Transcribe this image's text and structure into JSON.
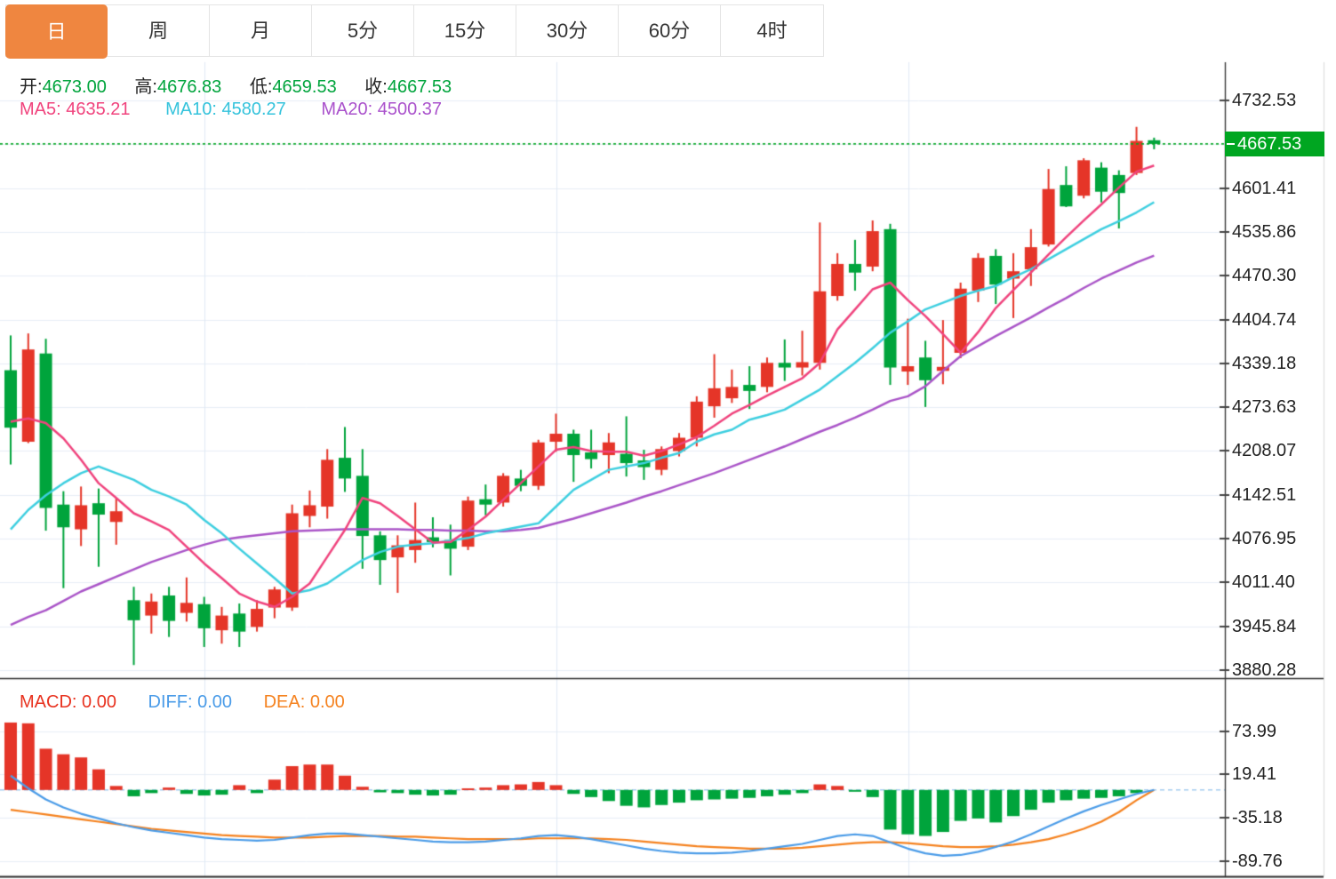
{
  "tabs": {
    "items": [
      {
        "label": "日",
        "active": true
      },
      {
        "label": "周",
        "active": false
      },
      {
        "label": "月",
        "active": false
      },
      {
        "label": "5分",
        "active": false
      },
      {
        "label": "15分",
        "active": false
      },
      {
        "label": "30分",
        "active": false
      },
      {
        "label": "60分",
        "active": false
      },
      {
        "label": "4时",
        "active": false
      }
    ]
  },
  "ohlc_bar": {
    "open_label": "开:",
    "open": "4673.00",
    "high_label": "高:",
    "high": "4676.83",
    "low_label": "低:",
    "low": "4659.53",
    "close_label": "收:",
    "close": "4667.53"
  },
  "ma_bar": {
    "ma5_label": "MA5:",
    "ma5": "4635.21",
    "ma10_label": "MA10:",
    "ma10": "4580.27",
    "ma20_label": "MA20:",
    "ma20": "4500.37"
  },
  "macd_bar": {
    "macd_label": "MACD:",
    "macd": "0.00",
    "diff_label": "DIFF:",
    "diff": "0.00",
    "dea_label": "DEA:",
    "dea": "0.00"
  },
  "colors": {
    "up": "#e53528",
    "down": "#00a43c",
    "ma5": "#f0437d",
    "ma10": "#3ecfe0",
    "ma20": "#aa55c8",
    "diff": "#4b9ce8",
    "dea": "#f5821f",
    "grid": "#e8eef6",
    "vgrid": "#dfe9f4",
    "axis": "#333333",
    "zero_dash": "#a5cdf0",
    "current_line": "#00a621",
    "tag_bg": "#00a621",
    "tab_active_bg": "#ef8640"
  },
  "price_axis": {
    "ticks": [
      4732.53,
      4601.41,
      4535.86,
      4470.3,
      4404.74,
      4339.18,
      4273.63,
      4208.07,
      4142.51,
      4076.95,
      4011.4,
      3945.84,
      3880.28
    ],
    "hidden_tick": 4666.97,
    "current": "4667.53"
  },
  "macd_axis": {
    "ticks": [
      73.99,
      19.41,
      -35.18,
      -89.76
    ]
  },
  "chart_data": {
    "type": "candlestick+macd",
    "title": "Daily K-line with MA5/MA10/MA20 and MACD",
    "legend_position": "top-left overlay",
    "grid": true,
    "y_axis_main": {
      "min": 3880.28,
      "max": 4732.53,
      "tick_step": 65.56
    },
    "y_axis_macd": {
      "min": -89.76,
      "max": 73.99
    },
    "current_price": 4667.53,
    "candles_ohlc": [
      [
        4329,
        4381,
        4188,
        4243
      ],
      [
        4222,
        4384,
        4220,
        4360
      ],
      [
        4354,
        4376,
        4089,
        4123
      ],
      [
        4128,
        4148,
        4003,
        4094
      ],
      [
        4091,
        4155,
        4066,
        4127
      ],
      [
        4130,
        4152,
        4035,
        4113
      ],
      [
        4102,
        4138,
        4068,
        4118
      ],
      [
        3985,
        4005,
        3888,
        3955
      ],
      [
        3962,
        3995,
        3935,
        3983
      ],
      [
        3992,
        4005,
        3930,
        3954
      ],
      [
        3966,
        4019,
        3953,
        3981
      ],
      [
        3979,
        3990,
        3915,
        3943
      ],
      [
        3940,
        3975,
        3920,
        3962
      ],
      [
        3965,
        3980,
        3915,
        3938
      ],
      [
        3945,
        3985,
        3938,
        3972
      ],
      [
        3974,
        4005,
        3958,
        4001
      ],
      [
        3974,
        4128,
        3969,
        4115
      ],
      [
        4111,
        4149,
        4094,
        4127
      ],
      [
        4125,
        4211,
        4107,
        4195
      ],
      [
        4198,
        4244,
        4147,
        4167
      ],
      [
        4171,
        4211,
        4032,
        4081
      ],
      [
        4082,
        4088,
        4008,
        4045
      ],
      [
        4049,
        4082,
        3996,
        4067
      ],
      [
        4060,
        4131,
        4041,
        4075
      ],
      [
        4079,
        4109,
        4064,
        4072
      ],
      [
        4075,
        4098,
        4022,
        4062
      ],
      [
        4065,
        4140,
        4060,
        4134
      ],
      [
        4136,
        4158,
        4112,
        4128
      ],
      [
        4131,
        4175,
        4125,
        4171
      ],
      [
        4167,
        4180,
        4148,
        4156
      ],
      [
        4156,
        4225,
        4150,
        4221
      ],
      [
        4222,
        4264,
        4207,
        4234
      ],
      [
        4234,
        4240,
        4162,
        4202
      ],
      [
        4206,
        4240,
        4182,
        4196
      ],
      [
        4202,
        4235,
        4175,
        4221
      ],
      [
        4204,
        4260,
        4170,
        4190
      ],
      [
        4194,
        4210,
        4165,
        4184
      ],
      [
        4180,
        4215,
        4172,
        4211
      ],
      [
        4208,
        4235,
        4200,
        4228
      ],
      [
        4228,
        4290,
        4215,
        4282
      ],
      [
        4275,
        4353,
        4258,
        4302
      ],
      [
        4287,
        4330,
        4280,
        4304
      ],
      [
        4307,
        4335,
        4271,
        4298
      ],
      [
        4304,
        4348,
        4296,
        4340
      ],
      [
        4340,
        4375,
        4313,
        4333
      ],
      [
        4333,
        4388,
        4321,
        4341
      ],
      [
        4340,
        4550,
        4330,
        4447
      ],
      [
        4440,
        4504,
        4433,
        4488
      ],
      [
        4488,
        4524,
        4448,
        4475
      ],
      [
        4484,
        4553,
        4477,
        4537
      ],
      [
        4540,
        4548,
        4307,
        4333
      ],
      [
        4327,
        4406,
        4307,
        4335
      ],
      [
        4348,
        4373,
        4274,
        4314
      ],
      [
        4328,
        4404,
        4308,
        4334
      ],
      [
        4355,
        4460,
        4347,
        4451
      ],
      [
        4448,
        4504,
        4431,
        4497
      ],
      [
        4500,
        4510,
        4428,
        4457
      ],
      [
        4466,
        4504,
        4407,
        4477
      ],
      [
        4480,
        4540,
        4455,
        4513
      ],
      [
        4517,
        4630,
        4514,
        4600
      ],
      [
        4606,
        4634,
        4573,
        4574
      ],
      [
        4590,
        4646,
        4586,
        4643
      ],
      [
        4632,
        4640,
        4580,
        4596
      ],
      [
        4621,
        4628,
        4541,
        4594
      ],
      [
        4624,
        4693,
        4621,
        4672
      ],
      [
        4673,
        4676.83,
        4659.53,
        4667.53
      ]
    ],
    "series": {
      "ma5": [
        4252,
        4257,
        4250,
        4227,
        4195,
        4160,
        4138,
        4115,
        4103,
        4090,
        4065,
        4040,
        4018,
        3995,
        3983,
        3975,
        3990,
        4010,
        4050,
        4090,
        4138,
        4130,
        4111,
        4091,
        4071,
        4072,
        4090,
        4110,
        4135,
        4160,
        4185,
        4210,
        4214,
        4208,
        4207,
        4207,
        4201,
        4208,
        4218,
        4229,
        4246,
        4264,
        4277,
        4291,
        4304,
        4317,
        4340,
        4390,
        4420,
        4450,
        4460,
        4434,
        4410,
        4383,
        4355,
        4386,
        4422,
        4449,
        4475,
        4502,
        4528,
        4553,
        4577,
        4602,
        4626,
        4635.21
      ],
      "ma10": [
        4091,
        4120,
        4142,
        4160,
        4175,
        4185,
        4175,
        4165,
        4150,
        4140,
        4128,
        4105,
        4085,
        4062,
        4040,
        4018,
        3995,
        4000,
        4010,
        4028,
        4045,
        4057,
        4065,
        4068,
        4070,
        4074,
        4078,
        4085,
        4090,
        4095,
        4100,
        4125,
        4150,
        4165,
        4180,
        4185,
        4190,
        4198,
        4205,
        4222,
        4233,
        4240,
        4255,
        4262,
        4270,
        4285,
        4300,
        4320,
        4340,
        4362,
        4385,
        4402,
        4420,
        4430,
        4440,
        4448,
        4455,
        4468,
        4480,
        4495,
        4510,
        4525,
        4540,
        4552,
        4565,
        4580.27
      ],
      "ma20": [
        3948,
        3960,
        3970,
        3984,
        3998,
        4009,
        4020,
        4031,
        4042,
        4051,
        4060,
        4068,
        4075,
        4079,
        4082,
        4085,
        4088,
        4089,
        4090,
        4091,
        4091,
        4091,
        4091,
        4090,
        4090,
        4089,
        4089,
        4088,
        4088,
        4090,
        4093,
        4100,
        4107,
        4115,
        4123,
        4131,
        4140,
        4148,
        4157,
        4166,
        4175,
        4185,
        4195,
        4205,
        4215,
        4226,
        4237,
        4247,
        4258,
        4270,
        4283,
        4290,
        4305,
        4328,
        4350,
        4365,
        4380,
        4394,
        4408,
        4423,
        4437,
        4452,
        4466,
        4478,
        4490,
        4500.37
      ]
    },
    "macd": {
      "histogram": [
        85,
        84,
        52,
        45,
        41,
        26,
        5,
        -8,
        -4,
        3,
        -5,
        -7,
        -6,
        6,
        -4,
        13,
        30,
        32,
        32,
        18,
        4,
        -3,
        -4,
        -6,
        -7,
        -6,
        2,
        3,
        6,
        7,
        10,
        6,
        -5,
        -9,
        -14,
        -20,
        -22,
        -19,
        -16,
        -13,
        -12,
        -11,
        -10,
        -8,
        -6,
        -4,
        7,
        5,
        -2,
        -9,
        -50,
        -56,
        -58,
        -53,
        -39,
        -36,
        -41,
        -33,
        -25,
        -16,
        -13,
        -11,
        -10,
        -8,
        -4,
        0
      ],
      "diff": [
        18,
        2,
        -12,
        -22,
        -30,
        -36,
        -42,
        -47,
        -51,
        -54,
        -57,
        -60,
        -62,
        -63,
        -64,
        -63,
        -60,
        -57,
        -55,
        -55,
        -57,
        -59,
        -61,
        -63,
        -65,
        -66,
        -66,
        -65,
        -63,
        -61,
        -58,
        -57,
        -59,
        -62,
        -66,
        -70,
        -74,
        -77,
        -79,
        -80,
        -80,
        -79,
        -77,
        -74,
        -71,
        -68,
        -63,
        -58,
        -56,
        -58,
        -66,
        -74,
        -80,
        -83,
        -82,
        -78,
        -72,
        -65,
        -56,
        -46,
        -36,
        -27,
        -19,
        -12,
        -5,
        0
      ],
      "dea": [
        -25,
        -28,
        -31,
        -34,
        -37,
        -40,
        -43,
        -46,
        -49,
        -51,
        -53,
        -55,
        -57,
        -58,
        -59,
        -60,
        -60,
        -60,
        -59,
        -58,
        -58,
        -58,
        -59,
        -59,
        -60,
        -61,
        -62,
        -62,
        -62,
        -62,
        -61,
        -61,
        -61,
        -61,
        -62,
        -63,
        -65,
        -67,
        -69,
        -71,
        -72,
        -73,
        -74,
        -74,
        -74,
        -73,
        -71,
        -69,
        -67,
        -66,
        -66,
        -67,
        -69,
        -71,
        -72,
        -72,
        -71,
        -69,
        -66,
        -62,
        -56,
        -49,
        -40,
        -28,
        -13,
        0
      ]
    }
  }
}
